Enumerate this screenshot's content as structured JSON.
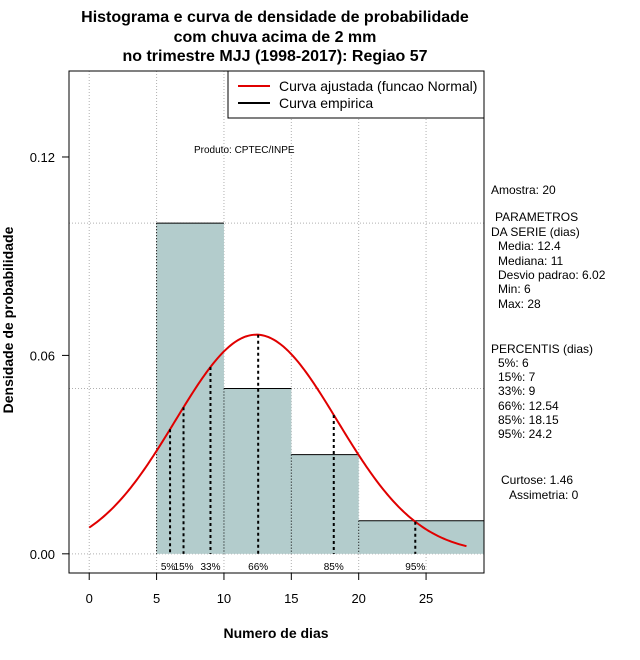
{
  "chart_data": {
    "type": "bar",
    "title_lines": [
      "Histograma e curva de densidade de probabilidade",
      "com chuva acima de 2 mm",
      "no trimestre MJJ (1998-2017): Regiao 57"
    ],
    "xlabel": "Numero de dias",
    "ylabel": "Densidade de probabilidade",
    "xlim": [
      -1.5,
      29.3
    ],
    "ylim": [
      -0.0058,
      0.146
    ],
    "x_ticks": [
      0,
      5,
      10,
      15,
      20,
      25
    ],
    "x_tick_labels": [
      "0",
      "5",
      "10",
      "15",
      "20",
      "25"
    ],
    "y_ticks": [
      0.0,
      0.06,
      0.12
    ],
    "y_tick_labels": [
      "0.00",
      "0.06",
      "0.12"
    ],
    "bins": [
      {
        "start": 5,
        "end": 10,
        "density": 0.1
      },
      {
        "start": 10,
        "end": 15,
        "density": 0.05
      },
      {
        "start": 15,
        "end": 20,
        "density": 0.03
      },
      {
        "start": 20,
        "end": 29.3,
        "density": 0.01
      }
    ],
    "normal_curve": {
      "mean": 12.4,
      "sd": 6.02,
      "x_from": 0,
      "x_to": 28
    },
    "percentiles": [
      {
        "label": "5%",
        "value": 6
      },
      {
        "label": "15%",
        "value": 7
      },
      {
        "label": "33%",
        "value": 9
      },
      {
        "label": "66%",
        "value": 12.54
      },
      {
        "label": "85%",
        "value": 18.15
      },
      {
        "label": "95%",
        "value": 24.2
      }
    ],
    "legend": {
      "position": "top-right",
      "entries": [
        {
          "label": "Curva ajustada (funcao Normal)",
          "color": "#e00000"
        },
        {
          "label": "Curva empirica",
          "color": "#000000"
        }
      ]
    },
    "credit": "Produto: CPTEC/INPE",
    "colors": {
      "bar_fill": "#b3cccc",
      "curve": "#e00000",
      "grid": "#b0b0b0"
    }
  },
  "side_panel": {
    "sample": "Amostra: 20",
    "params_title_1": "PARAMETROS",
    "params_title_2": "DA SERIE (dias)",
    "media": "Media: 12.4",
    "mediana": "Mediana: 11",
    "desvio": "Desvio padrao: 6.02",
    "min": "Min: 6",
    "max": "Max: 28",
    "percentis_title": "PERCENTIS (dias)",
    "p5": "5%: 6",
    "p15": "15%: 7",
    "p33": "33%: 9",
    "p66": "66%: 12.54",
    "p85": "85%: 18.15",
    "p95": "95%: 24.2",
    "curtose": "Curtose: 1.46",
    "assimetria": "Assimetria: 0"
  }
}
